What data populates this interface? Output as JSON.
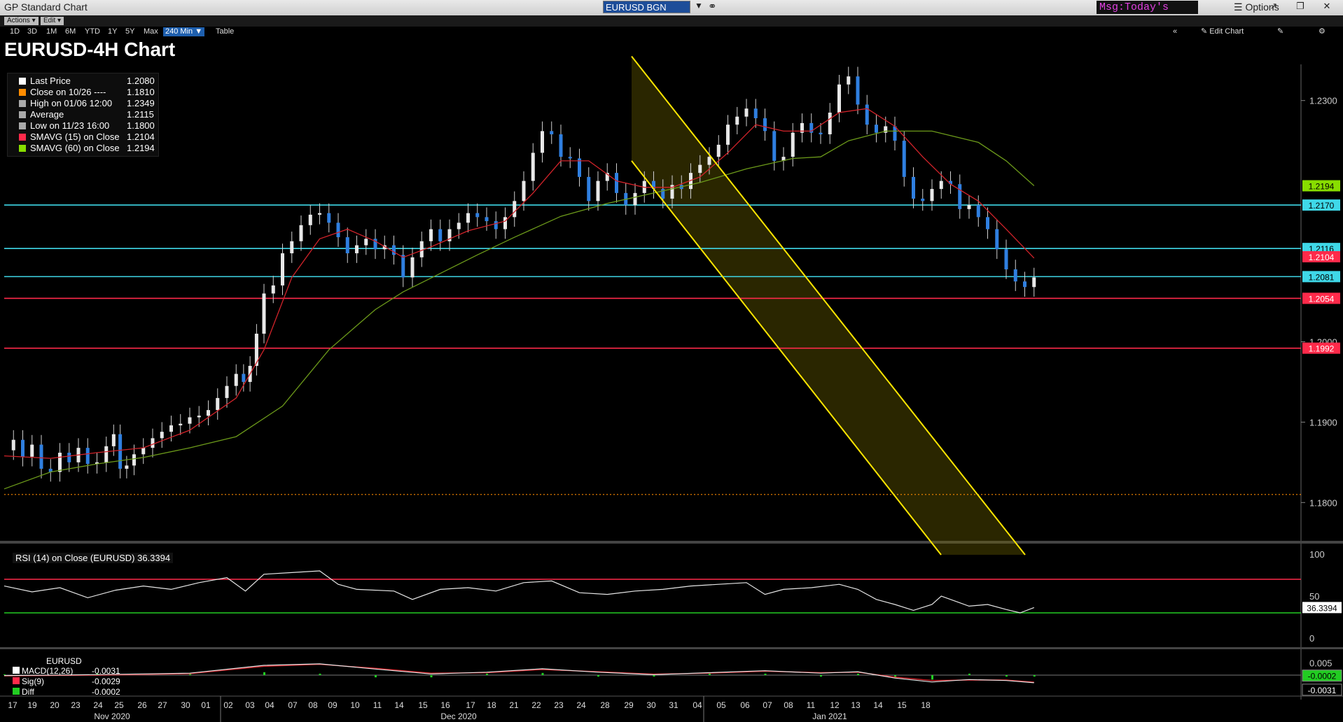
{
  "window": {
    "title": "GP Standard Chart",
    "ticker": "EURUSD BGN Curncy",
    "message": "Msg:Today's News",
    "options_label": "Options"
  },
  "toolbar": {
    "actions_label": "Actions ▾",
    "edit_label": "Edit ▾",
    "edit_chart_label": "✎ Edit Chart",
    "table_label": "Table",
    "ranges": [
      "1D",
      "3D",
      "1M",
      "6M",
      "YTD",
      "1Y",
      "5Y",
      "Max"
    ],
    "active_range": "240 Min ▼"
  },
  "chart_data": [
    {
      "type": "line",
      "title": "EURUSD-4H Chart",
      "ylim": [
        1.1755,
        1.2345
      ],
      "y_ticks": [
        "1.2300",
        "1.2000",
        "1.1900",
        "1.1800"
      ],
      "legend": [
        {
          "label": "Last Price",
          "value": "1.2080",
          "color": "#ffffff"
        },
        {
          "label": "Close on 10/26 ----",
          "value": "1.1810",
          "color": "#ff8c00"
        },
        {
          "label": "High on 01/06 12:00",
          "value": "1.2349",
          "color": "#aaaaaa"
        },
        {
          "label": "Average",
          "value": "1.2115",
          "color": "#aaaaaa"
        },
        {
          "label": "Low on 11/23 16:00",
          "value": "1.1800",
          "color": "#aaaaaa"
        },
        {
          "label": "SMAVG (15)   on Close",
          "value": "1.2104",
          "color": "#ff2a4a"
        },
        {
          "label": "SMAVG (60)   on Close",
          "value": "1.2194",
          "color": "#88dd00"
        }
      ],
      "horizontal_levels": [
        {
          "value": 1.217,
          "color": "#3fd8e8",
          "label": "1.2170"
        },
        {
          "value": 1.2116,
          "color": "#3fd8e8",
          "label": "1.2116"
        },
        {
          "value": 1.2081,
          "color": "#3fd8e8",
          "label": "1.2081"
        },
        {
          "value": 1.2054,
          "color": "#ff2a4a",
          "label": "1.2054"
        },
        {
          "value": 1.1992,
          "color": "#ff2a4a",
          "label": "1.1992"
        }
      ],
      "reference_line": {
        "value": 1.181,
        "color": "#ff8c00"
      },
      "value_tags": [
        {
          "value": 1.2194,
          "label": "1.2194",
          "bg": "#88dd00",
          "fg": "#000000"
        },
        {
          "value": 1.2104,
          "label": "1.2104",
          "bg": "#ff2a4a",
          "fg": "#ffffff"
        }
      ],
      "close_series": [
        [
          0,
          1.1865
        ],
        [
          10,
          1.1878
        ],
        [
          20,
          1.1857
        ],
        [
          30,
          1.1872
        ],
        [
          40,
          1.1842
        ],
        [
          50,
          1.1838
        ],
        [
          60,
          1.1862
        ],
        [
          70,
          1.185
        ],
        [
          80,
          1.1868
        ],
        [
          90,
          1.1848
        ],
        [
          100,
          1.185
        ],
        [
          110,
          1.187
        ],
        [
          118,
          1.1885
        ],
        [
          125,
          1.1842
        ],
        [
          132,
          1.1846
        ],
        [
          140,
          1.186
        ],
        [
          150,
          1.1868
        ],
        [
          160,
          1.188
        ],
        [
          170,
          1.1888
        ],
        [
          180,
          1.1896
        ],
        [
          190,
          1.1898
        ],
        [
          200,
          1.1906
        ],
        [
          210,
          1.1908
        ],
        [
          220,
          1.1915
        ],
        [
          230,
          1.193
        ],
        [
          240,
          1.1945
        ],
        [
          250,
          1.196
        ],
        [
          258,
          1.195
        ],
        [
          265,
          1.197
        ],
        [
          272,
          1.201
        ],
        [
          280,
          1.206
        ],
        [
          290,
          1.207
        ],
        [
          300,
          1.211
        ],
        [
          310,
          1.2125
        ],
        [
          320,
          1.2145
        ],
        [
          330,
          1.2158
        ],
        [
          340,
          1.216
        ],
        [
          350,
          1.2148
        ],
        [
          360,
          1.213
        ],
        [
          370,
          1.211
        ],
        [
          380,
          1.212
        ],
        [
          390,
          1.2128
        ],
        [
          400,
          1.2115
        ],
        [
          410,
          1.212
        ],
        [
          420,
          1.2108
        ],
        [
          430,
          1.208
        ],
        [
          440,
          1.2105
        ],
        [
          450,
          1.2125
        ],
        [
          460,
          1.214
        ],
        [
          470,
          1.2125
        ],
        [
          480,
          1.214
        ],
        [
          490,
          1.2148
        ],
        [
          500,
          1.216
        ],
        [
          510,
          1.2155
        ],
        [
          520,
          1.215
        ],
        [
          530,
          1.214
        ],
        [
          540,
          1.2155
        ],
        [
          550,
          1.2175
        ],
        [
          560,
          1.22
        ],
        [
          570,
          1.2235
        ],
        [
          580,
          1.2262
        ],
        [
          590,
          1.2258
        ],
        [
          600,
          1.223
        ],
        [
          610,
          1.2228
        ],
        [
          620,
          1.2205
        ],
        [
          630,
          1.2175
        ],
        [
          640,
          1.22
        ],
        [
          650,
          1.221
        ],
        [
          660,
          1.2185
        ],
        [
          670,
          1.217
        ],
        [
          680,
          1.2185
        ],
        [
          690,
          1.22
        ],
        [
          700,
          1.219
        ],
        [
          710,
          1.2178
        ],
        [
          720,
          1.2195
        ],
        [
          730,
          1.219
        ],
        [
          740,
          1.221
        ],
        [
          750,
          1.222
        ],
        [
          760,
          1.223
        ],
        [
          770,
          1.2245
        ],
        [
          780,
          1.227
        ],
        [
          790,
          1.228
        ],
        [
          800,
          1.229
        ],
        [
          810,
          1.2278
        ],
        [
          820,
          1.2262
        ],
        [
          830,
          1.2225
        ],
        [
          840,
          1.223
        ],
        [
          850,
          1.226
        ],
        [
          860,
          1.2272
        ],
        [
          870,
          1.226
        ],
        [
          880,
          1.2258
        ],
        [
          890,
          1.2285
        ],
        [
          900,
          1.232
        ],
        [
          910,
          1.233
        ],
        [
          920,
          1.2295
        ],
        [
          930,
          1.227
        ],
        [
          940,
          1.226
        ],
        [
          950,
          1.2268
        ],
        [
          960,
          1.225
        ],
        [
          970,
          1.2205
        ],
        [
          980,
          1.2178
        ],
        [
          990,
          1.2175
        ],
        [
          1000,
          1.219
        ],
        [
          1010,
          1.22
        ],
        [
          1020,
          1.2196
        ],
        [
          1030,
          1.2165
        ],
        [
          1040,
          1.217
        ],
        [
          1050,
          1.2155
        ],
        [
          1060,
          1.214
        ],
        [
          1070,
          1.2115
        ],
        [
          1080,
          1.209
        ],
        [
          1090,
          1.2075
        ],
        [
          1100,
          1.2068
        ],
        [
          1110,
          1.208
        ]
      ],
      "sma15": [
        [
          0,
          1.1858
        ],
        [
          50,
          1.1855
        ],
        [
          100,
          1.1862
        ],
        [
          150,
          1.1868
        ],
        [
          200,
          1.189
        ],
        [
          250,
          1.193
        ],
        [
          280,
          1.199
        ],
        [
          310,
          1.208
        ],
        [
          340,
          1.2128
        ],
        [
          370,
          1.214
        ],
        [
          400,
          1.2125
        ],
        [
          430,
          1.2105
        ],
        [
          460,
          1.2118
        ],
        [
          500,
          1.2138
        ],
        [
          540,
          1.215
        ],
        [
          570,
          1.2185
        ],
        [
          600,
          1.2225
        ],
        [
          630,
          1.2225
        ],
        [
          660,
          1.22
        ],
        [
          690,
          1.2192
        ],
        [
          720,
          1.2192
        ],
        [
          750,
          1.2205
        ],
        [
          780,
          1.2235
        ],
        [
          810,
          1.227
        ],
        [
          840,
          1.2262
        ],
        [
          870,
          1.2262
        ],
        [
          900,
          1.2285
        ],
        [
          930,
          1.229
        ],
        [
          960,
          1.2268
        ],
        [
          990,
          1.223
        ],
        [
          1020,
          1.2196
        ],
        [
          1050,
          1.2175
        ],
        [
          1080,
          1.214
        ],
        [
          1110,
          1.2104
        ]
      ],
      "sma60": [
        [
          0,
          1.1817
        ],
        [
          50,
          1.1838
        ],
        [
          100,
          1.1848
        ],
        [
          150,
          1.1856
        ],
        [
          200,
          1.1868
        ],
        [
          250,
          1.1882
        ],
        [
          300,
          1.192
        ],
        [
          350,
          1.199
        ],
        [
          400,
          1.204
        ],
        [
          430,
          1.2062
        ],
        [
          470,
          1.2085
        ],
        [
          510,
          1.2108
        ],
        [
          550,
          1.213
        ],
        [
          600,
          1.2156
        ],
        [
          650,
          1.2172
        ],
        [
          700,
          1.2185
        ],
        [
          750,
          1.2198
        ],
        [
          800,
          1.2215
        ],
        [
          850,
          1.2228
        ],
        [
          880,
          1.223
        ],
        [
          910,
          1.225
        ],
        [
          950,
          1.2262
        ],
        [
          1000,
          1.2262
        ],
        [
          1050,
          1.2248
        ],
        [
          1080,
          1.2225
        ],
        [
          1110,
          1.2194
        ]
      ],
      "channel": {
        "upper": [
          [
            896,
            1.2355
          ],
          [
            1458,
            1.1735
          ]
        ],
        "lower": [
          [
            896,
            1.2225
          ],
          [
            1338,
            1.1735
          ]
        ],
        "color": "#ffe600"
      },
      "x_labels_days": [
        "17",
        "19",
        "20",
        "23",
        "24",
        "25",
        "26",
        "27",
        "30",
        "01",
        "02",
        "03",
        "04",
        "07",
        "08",
        "09",
        "10",
        "11",
        "14",
        "15",
        "16",
        "17",
        "18",
        "21",
        "22",
        "23",
        "24",
        "28",
        "29",
        "30",
        "31",
        "04",
        "05",
        "06",
        "07",
        "08",
        "11",
        "12",
        "13",
        "14",
        "15",
        "18"
      ],
      "x_labels_months": [
        "Nov 2020",
        "Dec 2020",
        "Jan 2021"
      ]
    },
    {
      "type": "line",
      "title": "RSI (14)  on Close (EURUSD) 36.3394",
      "ylim": [
        0,
        100
      ],
      "y_ticks": [
        "100",
        "50",
        "0"
      ],
      "levels": [
        {
          "value": 70,
          "color": "#ff2a4a"
        },
        {
          "value": 30,
          "color": "#22cc22"
        }
      ],
      "value_tag": {
        "label": "36.3394",
        "bg": "#ffffff",
        "fg": "#000000"
      },
      "series": [
        [
          0,
          62
        ],
        [
          30,
          55
        ],
        [
          60,
          60
        ],
        [
          90,
          48
        ],
        [
          120,
          57
        ],
        [
          150,
          62
        ],
        [
          180,
          58
        ],
        [
          210,
          66
        ],
        [
          240,
          72
        ],
        [
          260,
          56
        ],
        [
          280,
          76
        ],
        [
          310,
          78
        ],
        [
          340,
          80
        ],
        [
          360,
          64
        ],
        [
          380,
          58
        ],
        [
          420,
          56
        ],
        [
          440,
          46
        ],
        [
          470,
          58
        ],
        [
          500,
          60
        ],
        [
          530,
          56
        ],
        [
          560,
          66
        ],
        [
          590,
          68
        ],
        [
          620,
          54
        ],
        [
          650,
          52
        ],
        [
          680,
          56
        ],
        [
          710,
          58
        ],
        [
          740,
          62
        ],
        [
          770,
          64
        ],
        [
          800,
          66
        ],
        [
          820,
          52
        ],
        [
          840,
          58
        ],
        [
          870,
          60
        ],
        [
          900,
          64
        ],
        [
          920,
          58
        ],
        [
          940,
          46
        ],
        [
          960,
          40
        ],
        [
          980,
          33
        ],
        [
          1000,
          40
        ],
        [
          1010,
          50
        ],
        [
          1020,
          46
        ],
        [
          1040,
          38
        ],
        [
          1060,
          40
        ],
        [
          1080,
          34
        ],
        [
          1095,
          30
        ],
        [
          1110,
          36.34
        ]
      ]
    },
    {
      "type": "line",
      "title": "EURUSD",
      "ylim": [
        -0.006,
        0.006
      ],
      "y_ticks": [
        "0.005"
      ],
      "legend": [
        {
          "label": "MACD(12,26)",
          "value": "-0.0031",
          "color": "#ffffff"
        },
        {
          "label": "Sig(9)",
          "value": "-0.0029",
          "color": "#ff2a4a"
        },
        {
          "label": "Diff",
          "value": "-0.0002",
          "color": "#22cc22"
        }
      ],
      "value_tags": [
        {
          "label": "-0.0002",
          "bg": "#22cc22",
          "fg": "#000000"
        },
        {
          "label": "-0.0031",
          "bg": "#000000",
          "fg": "#ffffff"
        }
      ],
      "macd": [
        [
          0,
          -0.0002
        ],
        [
          100,
          0.0002
        ],
        [
          200,
          0.0008
        ],
        [
          280,
          0.004
        ],
        [
          340,
          0.0046
        ],
        [
          400,
          0.0025
        ],
        [
          460,
          0.0005
        ],
        [
          520,
          0.0012
        ],
        [
          580,
          0.0026
        ],
        [
          640,
          0.0012
        ],
        [
          700,
          0.0002
        ],
        [
          760,
          0.001
        ],
        [
          820,
          0.0018
        ],
        [
          880,
          0.0008
        ],
        [
          920,
          0.0014
        ],
        [
          960,
          -0.0012
        ],
        [
          1000,
          -0.0028
        ],
        [
          1040,
          -0.0018
        ],
        [
          1080,
          -0.0022
        ],
        [
          1110,
          -0.0031
        ]
      ],
      "signal": [
        [
          0,
          -0.0003
        ],
        [
          100,
          0.0
        ],
        [
          200,
          0.0006
        ],
        [
          280,
          0.0036
        ],
        [
          340,
          0.0044
        ],
        [
          400,
          0.0028
        ],
        [
          460,
          0.0008
        ],
        [
          520,
          0.001
        ],
        [
          580,
          0.0023
        ],
        [
          640,
          0.0014
        ],
        [
          700,
          0.0004
        ],
        [
          760,
          0.0008
        ],
        [
          820,
          0.0016
        ],
        [
          880,
          0.001
        ],
        [
          920,
          0.0012
        ],
        [
          960,
          -0.0008
        ],
        [
          1000,
          -0.0022
        ],
        [
          1040,
          -0.002
        ],
        [
          1080,
          -0.002
        ],
        [
          1110,
          -0.0029
        ]
      ]
    }
  ]
}
